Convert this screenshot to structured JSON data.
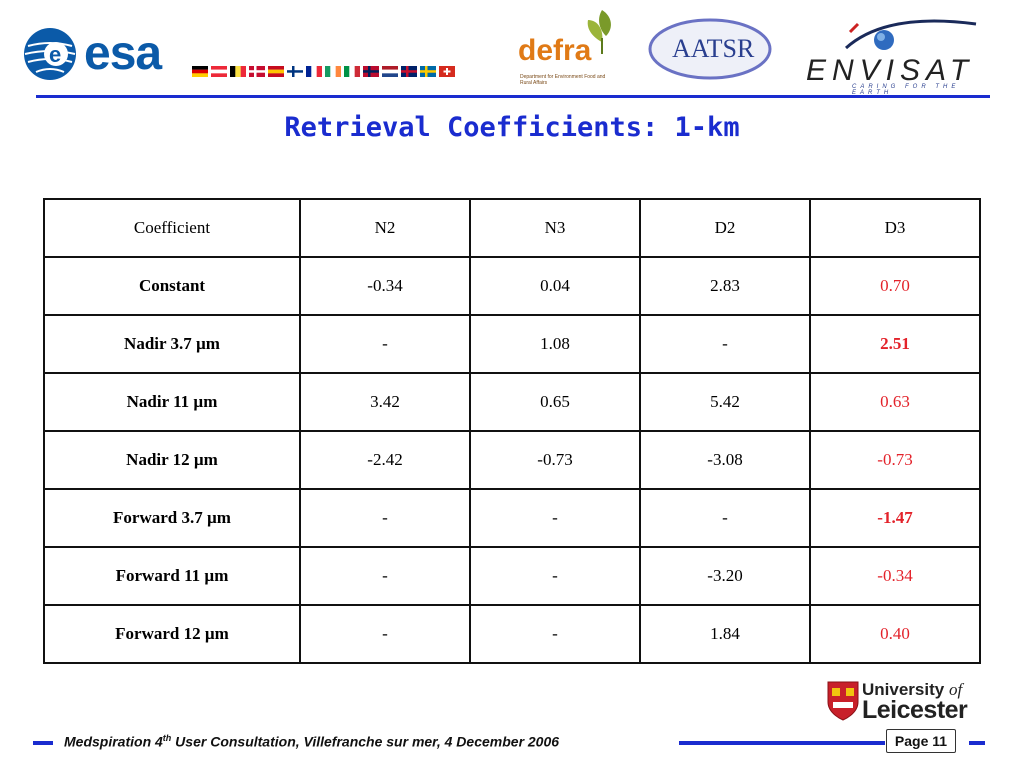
{
  "header": {
    "esa_text": "esa",
    "defra_text": "defra",
    "defra_sub": "Department for Environment Food and Rural Affairs",
    "aatsr_text": "AATSR",
    "envisat_text": "ENVISAT",
    "envisat_tag": "CARING FOR THE EARTH",
    "flags": [
      {
        "name": "germany",
        "colors": [
          "#000000",
          "#dd0000",
          "#ffce00"
        ],
        "dir": "h"
      },
      {
        "name": "austria",
        "colors": [
          "#ed2939",
          "#ffffff",
          "#ed2939"
        ],
        "dir": "h"
      },
      {
        "name": "belgium",
        "colors": [
          "#000000",
          "#fae042",
          "#ed2939"
        ],
        "dir": "v"
      },
      {
        "name": "denmark",
        "colors": [
          "#c60c30",
          "#ffffff"
        ],
        "dir": "cross"
      },
      {
        "name": "spain",
        "colors": [
          "#c60b1e",
          "#ffc400",
          "#c60b1e"
        ],
        "dir": "h"
      },
      {
        "name": "finland",
        "colors": [
          "#ffffff",
          "#003580"
        ],
        "dir": "cross"
      },
      {
        "name": "france",
        "colors": [
          "#002395",
          "#ffffff",
          "#ed2939"
        ],
        "dir": "v"
      },
      {
        "name": "ireland",
        "colors": [
          "#169b62",
          "#ffffff",
          "#ff883e"
        ],
        "dir": "v"
      },
      {
        "name": "italy",
        "colors": [
          "#009246",
          "#ffffff",
          "#ce2b37"
        ],
        "dir": "v"
      },
      {
        "name": "norway",
        "colors": [
          "#ba0c2f",
          "#00205b"
        ],
        "dir": "cross"
      },
      {
        "name": "netherlands",
        "colors": [
          "#ae1c28",
          "#ffffff",
          "#21468b"
        ],
        "dir": "h"
      },
      {
        "name": "uk",
        "colors": [
          "#012169",
          "#c8102e"
        ],
        "dir": "cross"
      },
      {
        "name": "sweden",
        "colors": [
          "#006aa7",
          "#fecc00"
        ],
        "dir": "cross"
      },
      {
        "name": "switzerland",
        "colors": [
          "#d52b1e",
          "#ffffff"
        ],
        "dir": "plus"
      }
    ]
  },
  "title": "Retrieval Coefficients: 1-km",
  "table": {
    "headers": [
      "Coefficient",
      "N2",
      "N3",
      "D2",
      "D3"
    ],
    "rows": [
      {
        "label": "Constant",
        "cells": [
          "-0.34",
          "0.04",
          "2.83",
          "0.70"
        ],
        "d3_bold": false
      },
      {
        "label": "Nadir 3.7 µm",
        "cells": [
          "-",
          "1.08",
          "-",
          "2.51"
        ],
        "d3_bold": true
      },
      {
        "label": "Nadir 11 µm",
        "cells": [
          "3.42",
          "0.65",
          "5.42",
          "0.63"
        ],
        "d3_bold": false
      },
      {
        "label": "Nadir 12 µm",
        "cells": [
          "-2.42",
          "-0.73",
          "-3.08",
          "-0.73"
        ],
        "d3_bold": false
      },
      {
        "label": "Forward 3.7 µm",
        "cells": [
          "-",
          "-",
          "-",
          "-1.47"
        ],
        "d3_bold": true
      },
      {
        "label": "Forward 11 µm",
        "cells": [
          "-",
          "-",
          "-3.20",
          "-0.34"
        ],
        "d3_bold": false
      },
      {
        "label": "Forward 12 µm",
        "cells": [
          "-",
          "-",
          "1.84",
          "0.40"
        ],
        "d3_bold": false
      }
    ],
    "highlight_color": "#e3222a"
  },
  "footer": {
    "text_pre": "Medspiration 4",
    "text_sup": "th",
    "text_post": " User Consultation, Villefranche sur mer, 4 December 2006",
    "page": "Page 11",
    "university_line1": "University",
    "university_of": "of",
    "university_line2": "Leicester",
    "accent_color": "#1a2ccf"
  }
}
